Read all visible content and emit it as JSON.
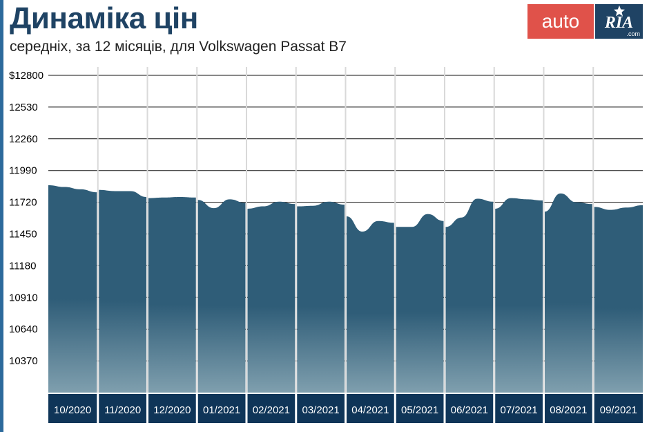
{
  "header": {
    "title": "Динаміка цін",
    "subtitle": "середніх, за 12 місяців, для Volkswagen Passat B7"
  },
  "logo": {
    "auto_text": "auto",
    "ria_text": "RIA",
    "ria_domain": ".com",
    "auto_color": "#e0524a",
    "ria_color": "#1f4364",
    "star_icon": "star-icon"
  },
  "colors": {
    "title": "#1f4364",
    "subtitle": "#222222",
    "accent": "#2c6a9c",
    "area_top": "#2f5d78",
    "area_bottom": "#7f9fae",
    "category_band": "#0f3558",
    "gridline": "#111111",
    "month_divider": "#d9d9d9"
  },
  "chart_data": {
    "type": "area",
    "title": "Динаміка цін",
    "subtitle": "середніх, за 12 місяців, для Volkswagen Passat B7",
    "categories": [
      "10/2020",
      "11/2020",
      "12/2020",
      "01/2021",
      "02/2021",
      "03/2021",
      "04/2021",
      "05/2021",
      "06/2021",
      "07/2021",
      "08/2021",
      "09/2021"
    ],
    "y_ticks": [
      "$12800",
      "12530",
      "12260",
      "11990",
      "11720",
      "11450",
      "11180",
      "10910",
      "10640",
      "10370"
    ],
    "ylim": [
      10100,
      12800
    ],
    "grid": true,
    "series": [
      {
        "values": [
          [
            11865,
            11850,
            11830,
            11805
          ],
          [
            11825,
            11815,
            11815,
            11765
          ],
          [
            11755,
            11760,
            11765,
            11760
          ],
          [
            11740,
            11670,
            11745,
            11715
          ],
          [
            11665,
            11685,
            11725,
            11705
          ],
          [
            11685,
            11690,
            11725,
            11700
          ],
          [
            11600,
            11470,
            11560,
            11545
          ],
          [
            11510,
            11510,
            11620,
            11560
          ],
          [
            11510,
            11590,
            11750,
            11725
          ],
          [
            11665,
            11755,
            11745,
            11735
          ],
          [
            11640,
            11795,
            11720,
            11705
          ],
          [
            11680,
            11655,
            11675,
            11695
          ]
        ]
      }
    ]
  }
}
